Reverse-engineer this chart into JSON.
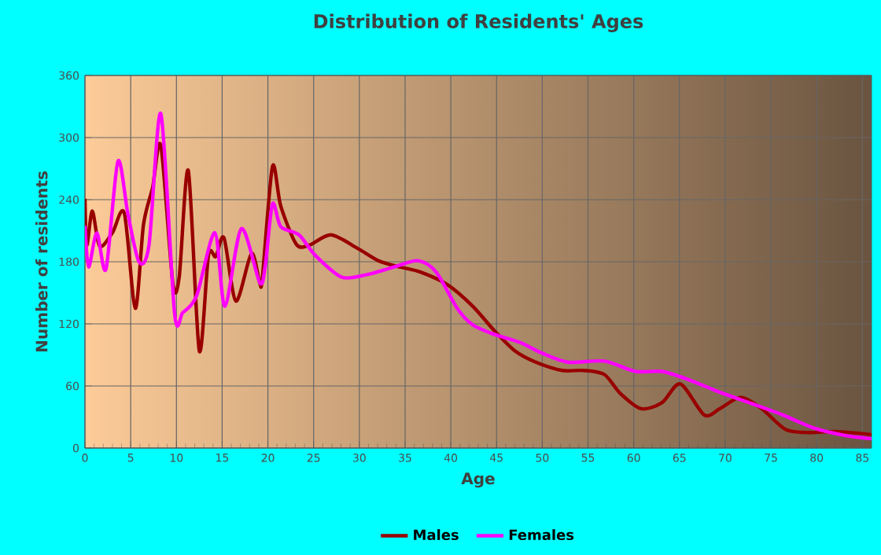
{
  "chart_data": {
    "type": "line",
    "title": "Distribution of Residents' Ages",
    "xlabel": "Age",
    "ylabel": "Number of residents",
    "xlim": [
      0,
      86
    ],
    "xticks": [
      0,
      5,
      10,
      15,
      20,
      25,
      30,
      35,
      40,
      45,
      50,
      55,
      60,
      65,
      70,
      75,
      80,
      85
    ],
    "ylim": [
      0,
      360
    ],
    "yticks": [
      0,
      60,
      120,
      180,
      240,
      300,
      360
    ],
    "grid": true,
    "legend": "bottom",
    "marker": "none",
    "line_style": "solid",
    "series": [
      {
        "name": "Males",
        "color": "#990000",
        "x": [
          0,
          0.2,
          0.8,
          1.6,
          3,
          4.3,
          5.5,
          6.4,
          7.4,
          8.3,
          9.6,
          10.3,
          11.3,
          12.5,
          13.5,
          14.3,
          15.2,
          16.5,
          18.2,
          19.1,
          19.4,
          20.5,
          21.4,
          23.1,
          24.5,
          26.9,
          29.8,
          32.1,
          34.4,
          36.7,
          39.6,
          42.4,
          44.7,
          47,
          49.3,
          52.2,
          54.5,
          56.8,
          58.5,
          60.8,
          63.1,
          65.1,
          67.7,
          69.4,
          71.7,
          74,
          76.6,
          79.2,
          82.1,
          86
        ],
        "values": [
          241,
          196,
          229,
          195,
          208,
          227,
          135,
          216,
          252,
          292,
          160,
          165,
          268,
          94,
          186,
          185,
          203,
          142,
          188,
          160,
          165,
          272,
          234,
          197,
          196,
          206,
          193,
          181,
          175,
          170,
          158,
          137,
          114,
          94,
          83,
          75,
          75,
          71,
          53,
          38,
          44,
          62,
          32,
          38,
          49,
          38,
          18,
          15,
          16,
          13
        ]
      },
      {
        "name": "Females",
        "color": "#ff00ff",
        "x": [
          0,
          0.4,
          1.3,
          2.3,
          3.6,
          4.7,
          5.9,
          7,
          8.3,
          9.8,
          10.7,
          12.2,
          14.2,
          15.3,
          17.1,
          19.1,
          19.7,
          20.5,
          21.4,
          23.4,
          25.2,
          28.1,
          31,
          33.8,
          36.4,
          38.4,
          40.7,
          42.4,
          44.7,
          47.6,
          49.9,
          52.8,
          56.8,
          60.2,
          63.1,
          66,
          69.4,
          72.9,
          76.3,
          79.8,
          83.2,
          86
        ],
        "values": [
          215,
          175,
          208,
          173,
          277,
          226,
          180,
          196,
          323,
          130,
          131,
          147,
          208,
          137,
          212,
          160,
          175,
          236,
          214,
          206,
          186,
          165,
          168,
          175,
          181,
          170,
          135,
          119,
          110,
          102,
          92,
          83,
          84,
          74,
          74,
          66,
          54,
          43,
          32,
          19,
          12,
          9
        ]
      }
    ]
  }
}
